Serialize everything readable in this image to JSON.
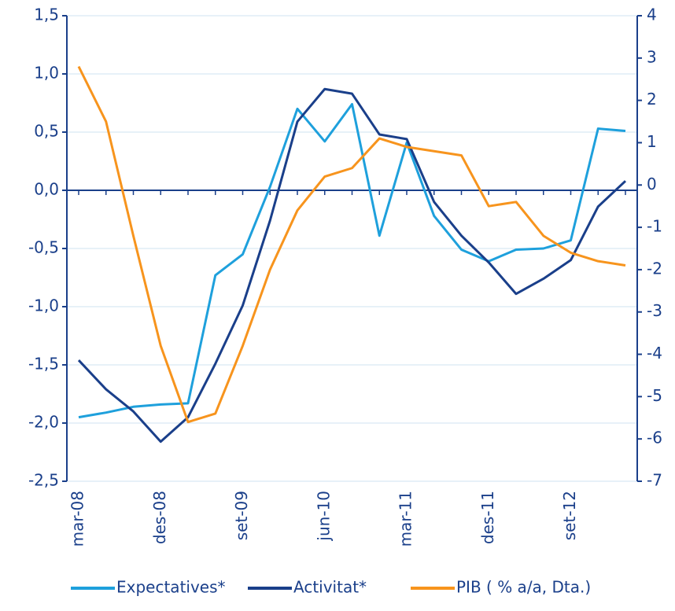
{
  "chart_data": {
    "type": "line",
    "categories": [
      "mar-08",
      null,
      null,
      "des-08",
      null,
      null,
      "set-09",
      null,
      null,
      "jun-10",
      null,
      null,
      "mar-11",
      null,
      null,
      "des-11",
      null,
      null,
      "set-12",
      null,
      null
    ],
    "series": [
      {
        "name": "Expectatives*",
        "color": "#1ea0dc",
        "axis": "y",
        "values": [
          -1.95,
          -1.91,
          -1.86,
          -1.84,
          -1.83,
          -0.73,
          -0.55,
          0.03,
          0.7,
          0.42,
          0.74,
          -0.39,
          0.41,
          -0.22,
          -0.51,
          -0.61,
          -0.51,
          -0.5,
          -0.43,
          0.53,
          0.51
        ]
      },
      {
        "name": "Activitat*",
        "color": "#1a3f8a",
        "axis": "y",
        "values": [
          -1.46,
          -1.71,
          -1.9,
          -2.16,
          -1.95,
          -1.49,
          -0.99,
          -0.26,
          0.59,
          0.87,
          0.83,
          0.48,
          0.44,
          -0.1,
          -0.39,
          -0.62,
          -0.89,
          -0.76,
          -0.6,
          -0.14,
          0.08
        ]
      },
      {
        "name": "PIB ( % a/a, Dta.)",
        "color": "#f7941d",
        "axis": "y2",
        "values": [
          2.8,
          1.5,
          -1.2,
          -3.8,
          -5.6,
          -5.4,
          -3.8,
          -2.0,
          -0.6,
          0.2,
          0.4,
          1.1,
          0.9,
          0.8,
          0.7,
          -0.5,
          -0.4,
          -1.2,
          -1.6,
          -1.8,
          -1.9
        ]
      }
    ],
    "ylim": [
      -2.5,
      1.5
    ],
    "yticks": [
      {
        "value": -2.5,
        "label": "-2,5"
      },
      {
        "value": -2.0,
        "label": "-2,0"
      },
      {
        "value": -1.5,
        "label": "-1,5"
      },
      {
        "value": -1.0,
        "label": "-1,0"
      },
      {
        "value": -0.5,
        "label": "-0,5"
      },
      {
        "value": 0,
        "label": "0,0"
      },
      {
        "value": 0.5,
        "label": "0,5"
      },
      {
        "value": 1.0,
        "label": "1,0"
      },
      {
        "value": 1.5,
        "label": "1,5"
      }
    ],
    "y2lim": [
      -7,
      4
    ],
    "y2ticks": [
      -7,
      -6,
      -5,
      -4,
      -3,
      -2,
      -1,
      0,
      1,
      2,
      3,
      4
    ],
    "grid": true,
    "legend": "bottom"
  }
}
